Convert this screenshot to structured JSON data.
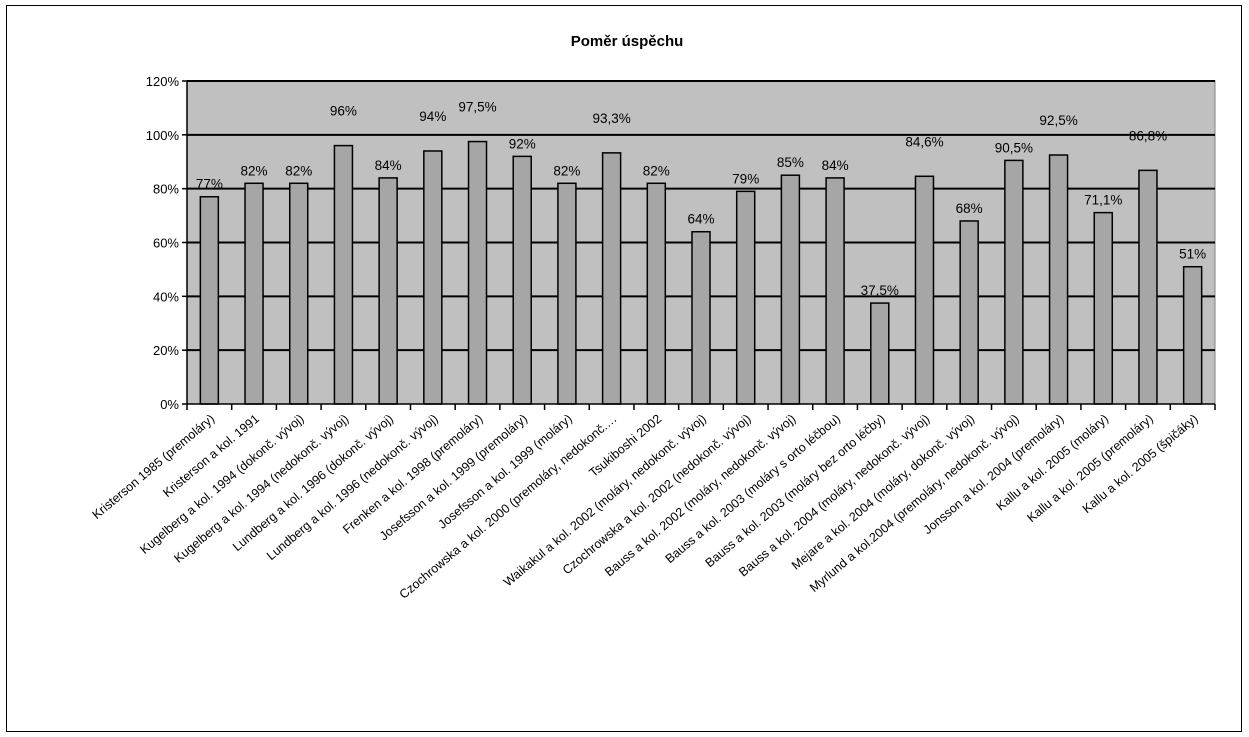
{
  "chart_data": {
    "type": "bar",
    "title": "Poměr úspěchu",
    "xlabel": "",
    "ylabel": "",
    "ylim": [
      0,
      120
    ],
    "y_ticks": [
      "0%",
      "20%",
      "40%",
      "60%",
      "80%",
      "100%",
      "120%"
    ],
    "grid": true,
    "legend": "none",
    "colors": {
      "plot_bg": "#c0c0c0",
      "bar": "#a6a6a6",
      "bar_edge": "#000000",
      "grid": "#000000"
    },
    "categories": [
      "Kristerson 1985 (premoláry)",
      "Kristerson a kol. 1991",
      "Kugelberg a kol. 1994 (dokonč. vývoj)",
      "Kugelberg a kol. 1994 (nedokonč. vývoj)",
      "Lundberg a kol. 1996 (dokonč. vývoj)",
      "Lundberg a kol. 1996 (nedokonč. vývoj)",
      "Frenken a kol. 1998 (premoláry)",
      "Josefsson a kol. 1999 (premoláry)",
      "Josefsson a kol. 1999 (moláry)",
      "Czochrowska a kol. 2000 (premoláry, nedokonč.…",
      "Tsukiboshi 2002",
      "Waikakul a kol. 2002 (moláry, nedokonč. vývoj)",
      "Czochrowska a kol. 2002 (nedokonč. vývoj)",
      "Bauss a kol. 2002 (moláry, nedokonč. vývoj)",
      "Bauss a kol. 2003 (moláry s orto léčbou)",
      "Bauss a kol. 2003 (moláry bez orto léčby)",
      "Bauss a kol. 2004 (moláry, nedokonč. vývoj)",
      "Mejare a kol. 2004 (moláry, dokonč. vývoj)",
      "Myrlund a kol.2004 (premoláry, nedokonč. vývoj)",
      "Jonsson a kol. 2004 (premoláry)",
      "Kallu a kol. 2005 (moláry)",
      "Kallu a kol. 2005 (premoláry)",
      "Kallu a kol. 2005 (špičáky)"
    ],
    "values": [
      77,
      82,
      82,
      96,
      84,
      94,
      97.5,
      92,
      82,
      93.3,
      82,
      64,
      79,
      85,
      84,
      37.5,
      84.6,
      68,
      90.5,
      92.5,
      71.1,
      86.8,
      51
    ],
    "data_labels": [
      "77%",
      "82%",
      "82%",
      "96%",
      "84%",
      "94%",
      "97,5%",
      "92%",
      "82%",
      "93,3%",
      "82%",
      "64%",
      "79%",
      "85%",
      "84%",
      "37,5%",
      "84,6%",
      "68%",
      "90,5%",
      "92,5%",
      "71,1%",
      "86,8%",
      "51%"
    ]
  }
}
